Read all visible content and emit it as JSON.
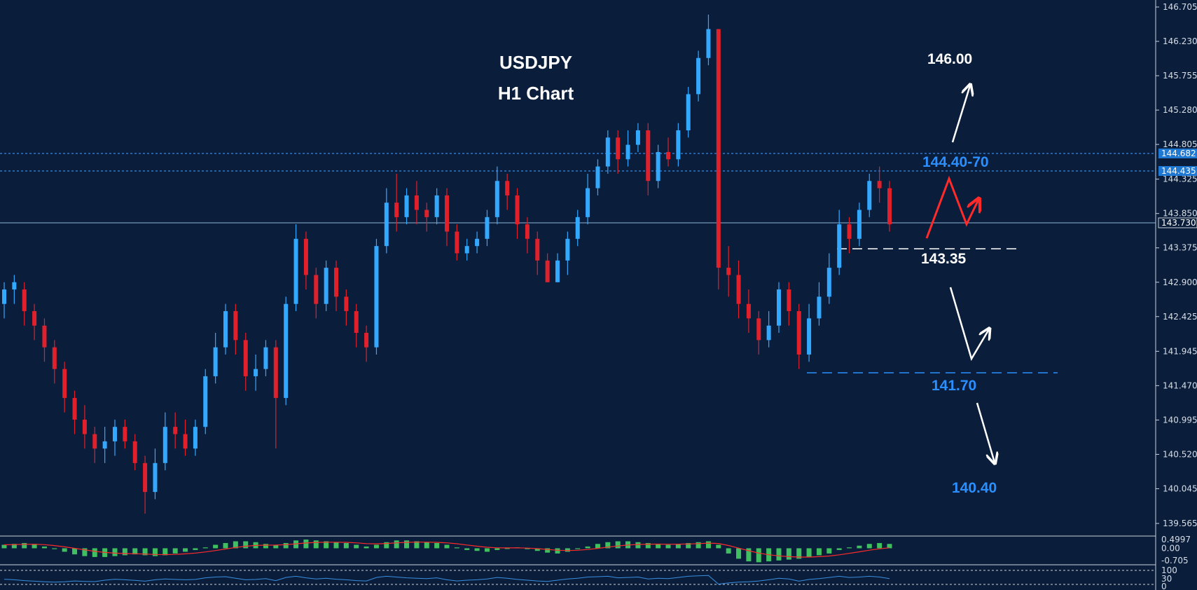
{
  "chart_data": {
    "type": "candlestick",
    "title": "USDJPY",
    "subtitle": "H1 Chart",
    "y_ticks": [
      "146.705",
      "146.230",
      "145.755",
      "145.280",
      "144.805",
      "144.325",
      "143.850",
      "143.375",
      "142.900",
      "142.425",
      "141.945",
      "141.470",
      "140.995",
      "140.520",
      "140.045",
      "139.565"
    ],
    "ylim": [
      139.565,
      146.705
    ],
    "current_price": "143.730",
    "level_tags": [
      "144.682",
      "144.435",
      "143.730"
    ],
    "annotations": {
      "target_high": "146.00",
      "resistance": "144.40-70",
      "pivot": "143.35",
      "support": "141.70",
      "target_low": "140.40"
    },
    "candles": [
      [
        142.6,
        142.8,
        142.4,
        142.9
      ],
      [
        142.8,
        142.9,
        142.6,
        143.0
      ],
      [
        142.8,
        142.5,
        142.3,
        142.9
      ],
      [
        142.5,
        142.3,
        142.1,
        142.6
      ],
      [
        142.3,
        142.0,
        141.8,
        142.4
      ],
      [
        142.0,
        141.7,
        141.5,
        142.1
      ],
      [
        141.7,
        141.3,
        141.1,
        141.8
      ],
      [
        141.3,
        141.0,
        140.8,
        141.4
      ],
      [
        141.0,
        140.8,
        140.6,
        141.2
      ],
      [
        140.8,
        140.6,
        140.4,
        140.9
      ],
      [
        140.6,
        140.7,
        140.4,
        140.9
      ],
      [
        140.7,
        140.9,
        140.5,
        141.0
      ],
      [
        140.9,
        140.7,
        140.6,
        141.0
      ],
      [
        140.7,
        140.4,
        140.3,
        140.8
      ],
      [
        140.4,
        140.0,
        139.7,
        140.5
      ],
      [
        140.0,
        140.4,
        139.9,
        140.6
      ],
      [
        140.4,
        140.9,
        140.3,
        141.1
      ],
      [
        140.9,
        140.8,
        140.6,
        141.1
      ],
      [
        140.8,
        140.6,
        140.5,
        141.0
      ],
      [
        140.6,
        140.9,
        140.5,
        141.0
      ],
      [
        140.9,
        141.6,
        140.8,
        141.7
      ],
      [
        141.6,
        142.0,
        141.5,
        142.2
      ],
      [
        142.0,
        142.5,
        141.9,
        142.6
      ],
      [
        142.5,
        142.1,
        141.9,
        142.6
      ],
      [
        142.1,
        141.6,
        141.4,
        142.2
      ],
      [
        141.6,
        141.7,
        141.4,
        141.9
      ],
      [
        141.7,
        142.0,
        141.6,
        142.1
      ],
      [
        142.0,
        141.3,
        140.6,
        142.1
      ],
      [
        141.3,
        142.6,
        141.2,
        142.7
      ],
      [
        142.6,
        143.5,
        142.5,
        143.7
      ],
      [
        143.5,
        143.0,
        142.8,
        143.6
      ],
      [
        143.0,
        142.6,
        142.4,
        143.1
      ],
      [
        142.6,
        143.1,
        142.5,
        143.2
      ],
      [
        143.1,
        142.7,
        142.5,
        143.2
      ],
      [
        142.7,
        142.5,
        142.3,
        142.8
      ],
      [
        142.5,
        142.2,
        142.0,
        142.6
      ],
      [
        142.2,
        142.0,
        141.8,
        142.3
      ],
      [
        142.0,
        143.4,
        141.9,
        143.5
      ],
      [
        143.4,
        144.0,
        143.3,
        144.2
      ],
      [
        144.0,
        143.8,
        143.6,
        144.4
      ],
      [
        143.8,
        144.1,
        143.7,
        144.2
      ],
      [
        144.1,
        143.9,
        143.7,
        144.3
      ],
      [
        143.9,
        143.8,
        143.6,
        144.0
      ],
      [
        143.8,
        144.1,
        143.7,
        144.2
      ],
      [
        144.1,
        143.6,
        143.4,
        144.2
      ],
      [
        143.6,
        143.3,
        143.2,
        143.7
      ],
      [
        143.3,
        143.4,
        143.2,
        143.5
      ],
      [
        143.4,
        143.5,
        143.3,
        143.6
      ],
      [
        143.5,
        143.8,
        143.4,
        143.9
      ],
      [
        143.8,
        144.3,
        143.7,
        144.5
      ],
      [
        144.3,
        144.1,
        143.9,
        144.4
      ],
      [
        144.1,
        143.7,
        143.5,
        144.2
      ],
      [
        143.7,
        143.5,
        143.3,
        143.8
      ],
      [
        143.5,
        143.2,
        143.0,
        143.6
      ],
      [
        143.2,
        142.9,
        142.9,
        143.3
      ],
      [
        142.9,
        143.2,
        142.9,
        143.3
      ],
      [
        143.2,
        143.5,
        143.0,
        143.6
      ],
      [
        143.5,
        143.8,
        143.4,
        143.9
      ],
      [
        143.8,
        144.2,
        143.7,
        144.4
      ],
      [
        144.2,
        144.5,
        144.1,
        144.6
      ],
      [
        144.5,
        144.9,
        144.4,
        145.0
      ],
      [
        144.9,
        144.6,
        144.4,
        145.0
      ],
      [
        144.6,
        144.8,
        144.5,
        145.0
      ],
      [
        144.8,
        145.0,
        144.7,
        145.1
      ],
      [
        145.0,
        144.3,
        144.1,
        145.1
      ],
      [
        144.3,
        144.7,
        144.2,
        144.8
      ],
      [
        144.7,
        144.6,
        144.5,
        144.9
      ],
      [
        144.6,
        145.0,
        144.5,
        145.1
      ],
      [
        145.0,
        145.5,
        144.9,
        145.6
      ],
      [
        145.5,
        146.0,
        145.4,
        146.1
      ],
      [
        146.0,
        146.4,
        145.9,
        146.6
      ],
      [
        146.4,
        143.1,
        142.8,
        146.4
      ],
      [
        143.1,
        143.0,
        142.7,
        143.4
      ],
      [
        143.0,
        142.6,
        142.4,
        143.2
      ],
      [
        142.6,
        142.4,
        142.2,
        142.8
      ],
      [
        142.4,
        142.1,
        141.9,
        142.5
      ],
      [
        142.1,
        142.3,
        142.0,
        142.5
      ],
      [
        142.3,
        142.8,
        142.2,
        142.9
      ],
      [
        142.8,
        142.5,
        142.3,
        142.9
      ],
      [
        142.5,
        141.9,
        141.7,
        142.6
      ],
      [
        141.9,
        142.4,
        141.8,
        142.6
      ],
      [
        142.4,
        142.7,
        142.3,
        142.9
      ],
      [
        142.7,
        143.1,
        142.6,
        143.3
      ],
      [
        143.1,
        143.7,
        143.0,
        143.9
      ],
      [
        143.7,
        143.5,
        143.3,
        143.8
      ],
      [
        143.5,
        143.9,
        143.4,
        144.0
      ],
      [
        143.9,
        144.3,
        143.8,
        144.4
      ],
      [
        144.3,
        144.2,
        144.0,
        144.5
      ],
      [
        144.2,
        143.7,
        143.6,
        144.3
      ]
    ],
    "macd_ticks": [
      "0.4997",
      "0.00",
      "-0.705"
    ],
    "macd_hist": [
      0.2,
      0.25,
      0.3,
      0.25,
      0.1,
      -0.05,
      -0.2,
      -0.35,
      -0.45,
      -0.5,
      -0.5,
      -0.45,
      -0.4,
      -0.35,
      -0.4,
      -0.45,
      -0.4,
      -0.3,
      -0.2,
      -0.1,
      0.05,
      0.2,
      0.3,
      0.4,
      0.4,
      0.35,
      0.25,
      0.2,
      0.3,
      0.45,
      0.5,
      0.45,
      0.4,
      0.35,
      0.3,
      0.2,
      0.1,
      0.2,
      0.35,
      0.45,
      0.45,
      0.4,
      0.35,
      0.3,
      0.2,
      0.05,
      -0.1,
      -0.15,
      -0.2,
      -0.1,
      0.0,
      0.05,
      -0.05,
      -0.15,
      -0.25,
      -0.3,
      -0.2,
      -0.05,
      0.1,
      0.25,
      0.35,
      0.4,
      0.4,
      0.35,
      0.3,
      0.25,
      0.2,
      0.25,
      0.3,
      0.35,
      0.4,
      0.2,
      -0.3,
      -0.6,
      -0.75,
      -0.8,
      -0.75,
      -0.7,
      -0.65,
      -0.6,
      -0.5,
      -0.4,
      -0.3,
      -0.1,
      0.05,
      0.15,
      0.25,
      0.3,
      0.25
    ],
    "rsi_ticks": [
      "100",
      "30",
      "0"
    ],
    "rsi": [
      55,
      52,
      48,
      45,
      42,
      40,
      42,
      46,
      44,
      43,
      50,
      55,
      52,
      49,
      45,
      52,
      56,
      54,
      52,
      54,
      62,
      66,
      68,
      60,
      52,
      54,
      58,
      48,
      64,
      70,
      62,
      56,
      60,
      55,
      52,
      48,
      46,
      64,
      70,
      66,
      62,
      60,
      58,
      62,
      52,
      46,
      50,
      52,
      56,
      64,
      60,
      54,
      50,
      46,
      44,
      50,
      56,
      60,
      66,
      68,
      70,
      62,
      64,
      66,
      56,
      60,
      58,
      64,
      70,
      72,
      74,
      30,
      36,
      40,
      42,
      46,
      52,
      60,
      56,
      45,
      54,
      58,
      64,
      70,
      64,
      66,
      70,
      66,
      58
    ]
  }
}
